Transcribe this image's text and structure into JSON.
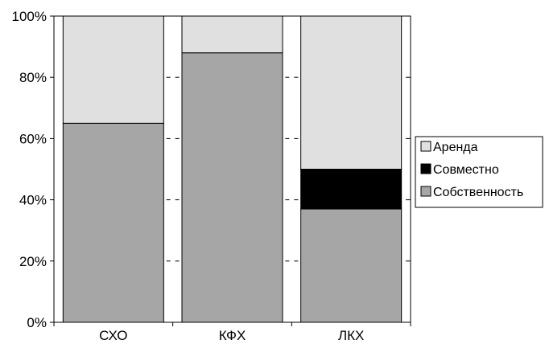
{
  "chart_data": {
    "type": "bar",
    "stacked": true,
    "normalized_percent": true,
    "categories": [
      "СХО",
      "КФХ",
      "ЛКХ"
    ],
    "series": [
      {
        "name": "Собственность",
        "values": [
          65,
          88,
          37
        ],
        "color": "#a6a6a6"
      },
      {
        "name": "Совместно",
        "values": [
          0,
          0,
          13
        ],
        "color": "#000000"
      },
      {
        "name": "Аренда",
        "values": [
          35,
          12,
          50
        ],
        "color": "#e0e0e0"
      }
    ],
    "ylim": [
      0,
      100
    ],
    "yticks": [
      0,
      20,
      40,
      60,
      80,
      100
    ],
    "ytick_labels": [
      "0%",
      "20%",
      "40%",
      "60%",
      "80%",
      "100%"
    ],
    "legend": {
      "placement": "right",
      "order": [
        "Аренда",
        "Совместно",
        "Собственность"
      ]
    },
    "grid": false
  }
}
